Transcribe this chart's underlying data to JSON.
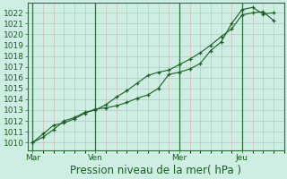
{
  "bg_color": "#ceeee4",
  "plot_bg_color": "#ceeee4",
  "grid_major_color": "#aaccbb",
  "grid_minor_color": "#ddaaaa",
  "line_color": "#1a5e20",
  "ylabel_ticks": [
    1010,
    1011,
    1012,
    1013,
    1014,
    1015,
    1016,
    1017,
    1018,
    1019,
    1020,
    1021,
    1022
  ],
  "ylim": [
    1009.3,
    1022.9
  ],
  "xlabel": "Pression niveau de la mer( hPa )",
  "xtick_labels": [
    "Mar",
    "Ven",
    "Mer",
    "Jeu"
  ],
  "xtick_positions": [
    0,
    24,
    56,
    80
  ],
  "xlim": [
    -2,
    96
  ],
  "vline_positions": [
    0,
    24,
    56,
    80
  ],
  "tick_fontsize": 6.5,
  "xlabel_fontsize": 8.5,
  "line1_x": [
    0,
    4,
    8,
    12,
    16,
    20,
    24,
    28,
    32,
    36,
    40,
    44,
    48,
    52,
    56,
    60,
    64,
    68,
    72,
    76,
    80,
    84,
    88,
    92
  ],
  "line1_y": [
    1010.0,
    1010.8,
    1011.6,
    1011.8,
    1012.2,
    1012.7,
    1013.1,
    1013.2,
    1013.4,
    1013.7,
    1014.1,
    1014.4,
    1015.0,
    1016.3,
    1016.5,
    1016.8,
    1017.3,
    1018.5,
    1019.3,
    1021.0,
    1022.3,
    1022.5,
    1021.9,
    1022.0
  ],
  "line2_x": [
    0,
    4,
    8,
    12,
    16,
    20,
    24,
    28,
    32,
    36,
    40,
    44,
    48,
    52,
    56,
    60,
    64,
    68,
    72,
    76,
    80,
    84,
    88,
    92
  ],
  "line2_y": [
    1010.0,
    1010.5,
    1011.2,
    1012.0,
    1012.3,
    1012.8,
    1013.0,
    1013.5,
    1014.2,
    1014.8,
    1015.5,
    1016.2,
    1016.5,
    1016.7,
    1017.2,
    1017.7,
    1018.3,
    1019.0,
    1019.8,
    1020.5,
    1021.8,
    1022.0,
    1022.1,
    1021.3
  ]
}
